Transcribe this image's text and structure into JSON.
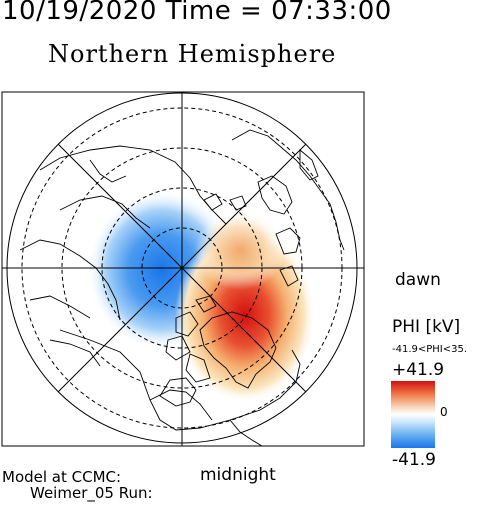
{
  "header": {
    "timestamp": "10/19/2020 Time = 07:33:00",
    "title": "Northern Hemisphere"
  },
  "map": {
    "orientation_labels": {
      "right": "dawn",
      "bottom": "midnight"
    },
    "colors": {
      "positive": "#d21010",
      "negative": "#1976e8",
      "background": "#ffffff"
    },
    "lobes": [
      {
        "sign": "negative",
        "sector": "pre-midnight / dusk side"
      },
      {
        "sign": "positive",
        "sector": "post-midnight / dawn side"
      }
    ]
  },
  "colorbar": {
    "quantity": "PHI [kV]",
    "range_text": "-41.9<PHI<35.",
    "max_label": "+41.9",
    "mid_label": "0",
    "min_label": "-41.9",
    "max_value": 41.9,
    "min_value": -41.9
  },
  "footer": {
    "line1": "Model at CCMC:",
    "line2": "Weimer_05 Run:"
  }
}
